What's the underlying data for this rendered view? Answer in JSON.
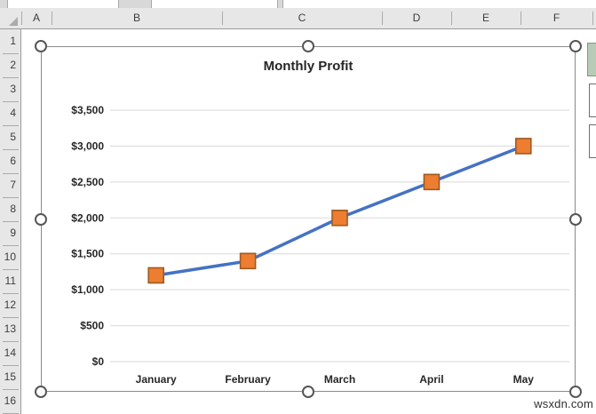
{
  "sheet": {
    "column_headers": [
      "A",
      "B",
      "C",
      "D",
      "E",
      "F"
    ],
    "row_headers": [
      "1",
      "2",
      "3",
      "4",
      "5",
      "6",
      "7",
      "8",
      "9",
      "10",
      "11",
      "12",
      "13",
      "14",
      "15",
      "16"
    ]
  },
  "chart_data": {
    "type": "line",
    "title": "Monthly Profit",
    "categories": [
      "January",
      "February",
      "March",
      "April",
      "May"
    ],
    "series": [
      {
        "name": "Monthly Profit",
        "values": [
          1200,
          1400,
          2000,
          2500,
          3000
        ]
      }
    ],
    "y_ticks": [
      {
        "label": "$3,500",
        "value": 3500
      },
      {
        "label": "$3,000",
        "value": 3000
      },
      {
        "label": "$2,500",
        "value": 2500
      },
      {
        "label": "$2,000",
        "value": 2000
      },
      {
        "label": "$1,500",
        "value": 1500
      },
      {
        "label": "$1,000",
        "value": 1000
      },
      {
        "label": "$500",
        "value": 500
      },
      {
        "label": "$0",
        "value": 0
      }
    ],
    "ylim": [
      0,
      3500
    ],
    "grid": true,
    "legend": "none",
    "colors": {
      "line": "#4472C4",
      "marker_fill": "#ED7D31",
      "marker_border": "#9E5A21",
      "gridline": "#D9D9D9",
      "text": "#262626"
    }
  },
  "chart_ui": {
    "selected": true,
    "handle_count": 8
  },
  "side_buttons": [
    {
      "icon": "chart-elements-plus-icon"
    },
    {
      "icon": "chart-styles-brush-icon"
    },
    {
      "icon": "chart-filters-funnel-icon"
    }
  ],
  "watermark": {
    "text": "wsxdn.com"
  }
}
